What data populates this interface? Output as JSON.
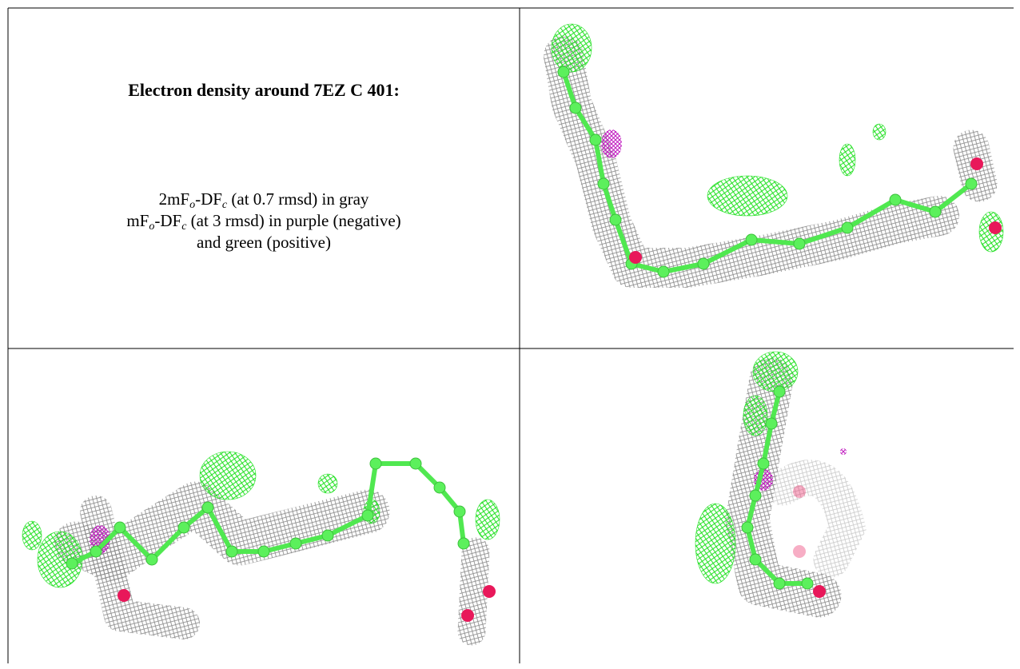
{
  "title": "Electron density around 7EZ C 401:",
  "description": [
    [
      "2mF",
      "o",
      "-DF",
      "c",
      " (at 0.7 rmsd) in gray"
    ],
    [
      "mF",
      "o",
      "-DF",
      "c",
      " (at 3 rmsd) in purple (negative)"
    ],
    [
      "and green (positive)"
    ]
  ]
}
